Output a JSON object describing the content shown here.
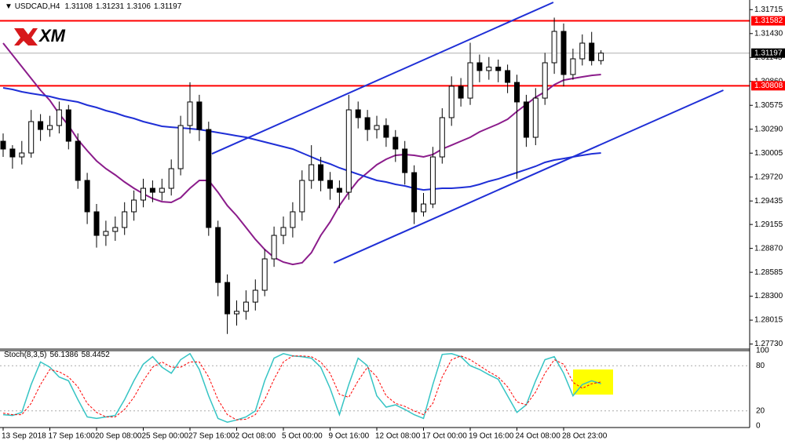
{
  "chart_data": {
    "type": "candlestick",
    "title": "USDCAD,H4",
    "logo": "XM",
    "categories": [
      "13 Sep 2018",
      null,
      null,
      null,
      null,
      "17 Sep 16:00",
      null,
      null,
      null,
      null,
      "20 Sep 08:00",
      null,
      null,
      null,
      null,
      "25 Sep 00:00",
      null,
      null,
      null,
      null,
      "27 Sep 16:00",
      null,
      null,
      null,
      null,
      "2 Oct 08:00",
      null,
      null,
      null,
      null,
      "5 Oct 00:00",
      null,
      null,
      null,
      null,
      "9 Oct 16:00",
      null,
      null,
      null,
      null,
      "12 Oct 08:00",
      null,
      null,
      null,
      null,
      "17 Oct 00:00",
      null,
      null,
      null,
      null,
      "19 Oct 16:00",
      null,
      null,
      null,
      null,
      "24 Oct 08:00",
      null,
      null,
      null,
      null,
      "28 Oct 23:00",
      null,
      null,
      null,
      null
    ],
    "open": [
      1.30147,
      1.30054,
      1.2996,
      1.30007,
      1.30381,
      1.30287,
      1.30334,
      1.30521,
      1.30147,
      1.2968,
      1.29306,
      1.29025,
      1.29072,
      1.29119,
      1.29306,
      1.29446,
      1.29586,
      1.29539,
      1.29586,
      1.2982,
      1.30334,
      1.30615,
      1.30287,
      1.29119,
      1.28464,
      1.2809,
      1.2812,
      1.2823,
      1.28371,
      1.28745,
      1.29025,
      1.29119,
      1.29306,
      1.2968,
      1.29867,
      1.2968,
      1.29586,
      1.29539,
      1.30521,
      1.30428,
      1.30287,
      1.30334,
      1.30194,
      1.30054,
      1.29773,
      1.29306,
      1.29399,
      1.2996,
      1.30428,
      1.30802,
      1.30661,
      1.31082,
      1.30989,
      1.3103,
      1.30989,
      1.30848,
      1.30615,
      1.30194,
      1.30661,
      1.31082,
      1.31456,
      1.30942,
      1.31129,
      1.31316,
      1.31108
    ],
    "high": [
      1.3024,
      1.301,
      1.3015,
      1.3052,
      1.3047,
      1.3045,
      1.3062,
      1.3058,
      1.3024,
      1.2977,
      1.294,
      1.292,
      1.2925,
      1.2942,
      1.2956,
      1.297,
      1.2968,
      1.297,
      1.2993,
      1.3045,
      1.3085,
      1.307,
      1.3038,
      1.292,
      1.2856,
      1.2825,
      1.2837,
      1.285,
      1.2886,
      1.2913,
      1.2925,
      1.2942,
      1.298,
      1.301,
      1.2996,
      1.2978,
      1.2968,
      1.307,
      1.3062,
      1.3052,
      1.3045,
      1.3042,
      1.3028,
      1.3015,
      1.2986,
      1.2953,
      1.3008,
      1.3054,
      1.3092,
      1.309,
      1.3132,
      1.3118,
      1.3115,
      1.3112,
      1.3106,
      1.3094,
      1.307,
      1.3078,
      1.312,
      1.3162,
      1.3155,
      1.3125,
      1.3142,
      1.3145,
      1.31231
    ],
    "low": [
      1.2996,
      1.2982,
      1.2987,
      1.2995,
      1.3015,
      1.302,
      1.3024,
      1.3005,
      1.2958,
      1.2916,
      1.2888,
      1.289,
      1.2896,
      1.2903,
      1.292,
      1.2936,
      1.2942,
      1.2944,
      1.295,
      1.2974,
      1.3024,
      1.3015,
      1.2902,
      1.283,
      1.2785,
      1.2795,
      1.2802,
      1.2813,
      1.283,
      1.2865,
      1.2892,
      1.29,
      1.292,
      1.2958,
      1.2955,
      1.2945,
      1.2935,
      1.2945,
      1.303,
      1.3015,
      1.3018,
      1.3008,
      1.299,
      1.2963,
      1.2916,
      1.2925,
      1.2935,
      1.2988,
      1.3033,
      1.3056,
      1.3058,
      1.3085,
      1.3088,
      1.3085,
      1.3072,
      1.297,
      1.3008,
      1.301,
      1.3058,
      1.3095,
      1.308,
      1.3088,
      1.3105,
      1.3105,
      1.3106
    ],
    "close": [
      1.30054,
      1.2996,
      1.30007,
      1.30381,
      1.30287,
      1.30334,
      1.30521,
      1.30147,
      1.2968,
      1.29306,
      1.29025,
      1.29072,
      1.29119,
      1.29306,
      1.29446,
      1.29586,
      1.29539,
      1.29586,
      1.2982,
      1.30334,
      1.30615,
      1.30287,
      1.29119,
      1.28464,
      1.2809,
      1.2812,
      1.2823,
      1.28371,
      1.28745,
      1.29025,
      1.29119,
      1.29306,
      1.2968,
      1.29867,
      1.2968,
      1.29586,
      1.29539,
      1.30521,
      1.30428,
      1.30287,
      1.30334,
      1.30194,
      1.30054,
      1.29773,
      1.29306,
      1.29399,
      1.2996,
      1.30428,
      1.30802,
      1.30661,
      1.31082,
      1.30989,
      1.3103,
      1.30989,
      1.30848,
      1.30615,
      1.30194,
      1.30661,
      1.31082,
      1.31456,
      1.30942,
      1.31129,
      1.31316,
      1.31108,
      1.31197
    ],
    "up_color": "#ffffff",
    "down_color": "#000000",
    "ylim": [
      1.2767,
      1.3183
    ],
    "yticks": [
      1.31715,
      {
        "value": 1.3143,
        "label": "1.31430"
      },
      1.31145,
      {
        "value": 1.3086,
        "label": "1.30860"
      },
      1.30575,
      {
        "value": 1.3029,
        "label": "1.30290"
      },
      1.30005,
      {
        "value": 1.2972,
        "label": "1.29720"
      },
      1.29435,
      1.29155,
      {
        "value": 1.2887,
        "label": "1.28870"
      },
      1.28585,
      {
        "value": 1.283,
        "label": "1.28300"
      },
      1.28015,
      {
        "value": 1.2773,
        "label": "1.27730"
      }
    ],
    "lines": [
      {
        "color": "#8b1c8b",
        "values": [
          1.31316,
          1.31176,
          1.31035,
          1.30895,
          1.30755,
          1.30633,
          1.30474,
          1.30334,
          1.30166,
          1.30035,
          1.29913,
          1.2982,
          1.29745,
          1.29661,
          1.29586,
          1.29521,
          1.29464,
          1.29427,
          1.29418,
          1.29474,
          1.29586,
          1.2968,
          1.2968,
          1.29539,
          1.2938,
          1.29259,
          1.29119,
          1.28978,
          1.28857,
          1.28763,
          1.28707,
          1.28679,
          1.28698,
          1.28819,
          1.29025,
          1.29184,
          1.2938,
          1.29539,
          1.2968,
          1.29773,
          1.29867,
          1.29932,
          1.29979,
          1.29988,
          1.29979,
          1.2996,
          1.29988,
          1.30054,
          1.301,
          1.30147,
          1.30194,
          1.30259,
          1.30306,
          1.30353,
          1.30409,
          1.30502,
          1.30586,
          1.30671,
          1.30736,
          1.3082,
          1.30876,
          1.30895,
          1.30914,
          1.30932,
          1.30942
        ]
      },
      {
        "color": "#1f2fd6",
        "values": [
          1.30783,
          1.30764,
          1.30736,
          1.30717,
          1.30699,
          1.3068,
          1.30652,
          1.30633,
          1.30615,
          1.30577,
          1.30549,
          1.30512,
          1.30484,
          1.30446,
          1.30418,
          1.30381,
          1.30353,
          1.30325,
          1.30315,
          1.30306,
          1.30297,
          1.30287,
          1.30269,
          1.3025,
          1.30231,
          1.30212,
          1.30194,
          1.30166,
          1.30138,
          1.3011,
          1.30082,
          1.30054,
          1.30007,
          1.2996,
          1.29913,
          1.29876,
          1.29829,
          1.29792,
          1.29754,
          1.29717,
          1.2968,
          1.29661,
          1.29633,
          1.29614,
          1.29586,
          1.29567,
          1.29577,
          1.29586,
          1.29586,
          1.29595,
          1.29605,
          1.29633,
          1.2967,
          1.29698,
          1.29736,
          1.29773,
          1.2981,
          1.29848,
          1.29895,
          1.29923,
          1.29941,
          1.2996,
          1.29979,
          1.29997,
          1.30007
        ]
      }
    ],
    "levels": [
      {
        "value": 1.31582,
        "color": "#ff0000"
      },
      {
        "value": 1.30808,
        "color": "#ff0000"
      }
    ],
    "trendlines": [
      {
        "color": "#1f2fd6",
        "x": [
          22.35,
          58.9
        ],
        "y": [
          1.29997,
          1.31802
        ]
      },
      {
        "color": "#1f2fd6",
        "x": [
          35.4,
          77.1
        ],
        "y": [
          1.28698,
          1.30755
        ]
      }
    ],
    "indicator": {
      "title": "Stoch(8,3,5)",
      "ylim": [
        0,
        100
      ],
      "yticks": [
        100,
        80,
        20,
        0
      ],
      "main": {
        "color": "#35c4c4",
        "values": [
          15,
          14,
          18,
          55,
          85,
          78,
          65,
          60,
          35,
          12,
          10,
          12,
          14,
          35,
          60,
          82,
          92,
          78,
          70,
          88,
          96,
          75,
          40,
          10,
          5,
          8,
          12,
          20,
          60,
          90,
          96,
          93,
          92,
          90,
          78,
          50,
          15,
          55,
          90,
          80,
          40,
          25,
          28,
          22,
          15,
          10,
          55,
          95,
          96,
          92,
          80,
          75,
          68,
          62,
          40,
          18,
          28,
          60,
          88,
          92,
          70,
          40,
          55,
          60,
          56.1386
        ]
      },
      "signal": {
        "color": "#ff0000",
        "values": [
          17,
          15,
          15,
          30,
          55,
          75,
          72,
          65,
          52,
          30,
          18,
          12,
          12,
          22,
          38,
          60,
          78,
          85,
          78,
          78,
          85,
          85,
          65,
          35,
          15,
          8,
          9,
          15,
          35,
          62,
          85,
          93,
          93,
          92,
          85,
          70,
          42,
          38,
          60,
          78,
          65,
          40,
          30,
          26,
          20,
          15,
          30,
          65,
          88,
          93,
          88,
          80,
          72,
          65,
          52,
          32,
          28,
          45,
          70,
          88,
          82,
          58,
          50,
          56,
          58.4452
        ]
      }
    }
  }
}
